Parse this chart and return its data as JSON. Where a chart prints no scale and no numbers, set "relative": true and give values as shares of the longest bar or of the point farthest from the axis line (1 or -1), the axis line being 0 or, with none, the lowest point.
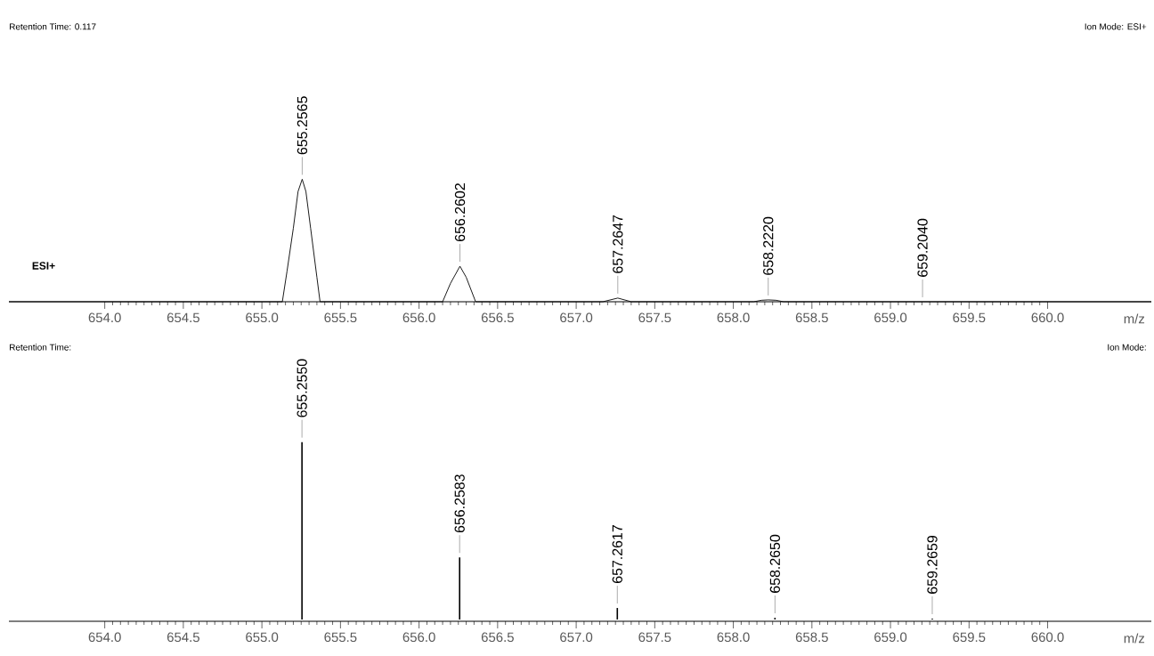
{
  "chart_data": [
    {
      "type": "line",
      "relative": true,
      "xlabel": "m/z",
      "xlim": [
        653.39,
        660.66
      ],
      "xticks": [
        {
          "value": 654,
          "label": "654.0"
        },
        {
          "value": 654.5,
          "label": "654.5"
        },
        {
          "value": 655,
          "label": "655.0"
        },
        {
          "value": 655.5,
          "label": "655.5"
        },
        {
          "value": 656,
          "label": "656.0"
        },
        {
          "value": 656.5,
          "label": "656.5"
        },
        {
          "value": 657,
          "label": "657.0"
        },
        {
          "value": 657.5,
          "label": "657.5"
        },
        {
          "value": 658,
          "label": "658.0"
        },
        {
          "value": 658.5,
          "label": "658.5"
        },
        {
          "value": 659,
          "label": "659.0"
        },
        {
          "value": 659.5,
          "label": "659.5"
        },
        {
          "value": 660,
          "label": "660.0"
        }
      ],
      "color": "#000000",
      "x": [
        653.39,
        655.13,
        655.16,
        655.2,
        655.23,
        655.2565,
        655.28,
        655.31,
        655.35,
        655.37,
        656.15,
        656.2,
        656.2602,
        656.3,
        656.36,
        657.17,
        657.2647,
        657.35,
        658.13,
        658.18,
        658.222,
        658.27,
        658.32,
        659.204,
        660.66
      ],
      "values": [
        0,
        0,
        0.25,
        0.6,
        0.9,
        1,
        0.9,
        0.6,
        0.2,
        0,
        0,
        0.15,
        0.29,
        0.2,
        0,
        0,
        0.03,
        0,
        0,
        0.012,
        0.015,
        0.012,
        0,
        0,
        0
      ],
      "annotations": [
        "Retention Time:  0.117",
        "Ion Mode: ESI+",
        "**ESI+**",
        {
          "text": "655.2565",
          "x": 655.2565,
          "y": 1
        },
        {
          "text": "656.2602",
          "x": 656.2602,
          "y": 0.29
        },
        {
          "text": "657.2647",
          "x": 657.2647,
          "y": 0.03
        },
        {
          "text": "658.2220",
          "x": 658.222,
          "y": 0.015
        },
        {
          "text": "659.2040",
          "x": 659.204,
          "y": 0
        }
      ]
    },
    {
      "type": "bar",
      "relative": true,
      "xlabel": "m/z",
      "xlim": [
        653.39,
        660.66
      ],
      "xticks": [
        {
          "value": 654,
          "label": "654.0"
        },
        {
          "value": 654.5,
          "label": "654.5"
        },
        {
          "value": 655,
          "label": "655.0"
        },
        {
          "value": 655.5,
          "label": "655.5"
        },
        {
          "value": 656,
          "label": "656.0"
        },
        {
          "value": 656.5,
          "label": "656.5"
        },
        {
          "value": 657,
          "label": "657.0"
        },
        {
          "value": 657.5,
          "label": "657.5"
        },
        {
          "value": 658,
          "label": "658.0"
        },
        {
          "value": 658.5,
          "label": "658.5"
        },
        {
          "value": 659,
          "label": "659.0"
        },
        {
          "value": 659.5,
          "label": "659.5"
        },
        {
          "value": 660,
          "label": "660.0"
        }
      ],
      "color": "#000000",
      "x": [
        655.255,
        656.2583,
        657.2617,
        658.265,
        659.2659
      ],
      "values": [
        1,
        0.35,
        0.065,
        0.01,
        0.005
      ],
      "annotations": [
        "Retention Time:",
        "Ion Mode:",
        {
          "text": "655.2550",
          "x": 655.255,
          "y": 1
        },
        {
          "text": "656.2583",
          "x": 656.2583,
          "y": 0.35
        },
        {
          "text": "657.2617",
          "x": 657.2617,
          "y": 0.065
        },
        {
          "text": "658.2650",
          "x": 658.265,
          "y": 0.01
        },
        {
          "text": "659.2659",
          "x": 659.2659,
          "y": 0.005
        }
      ]
    }
  ]
}
